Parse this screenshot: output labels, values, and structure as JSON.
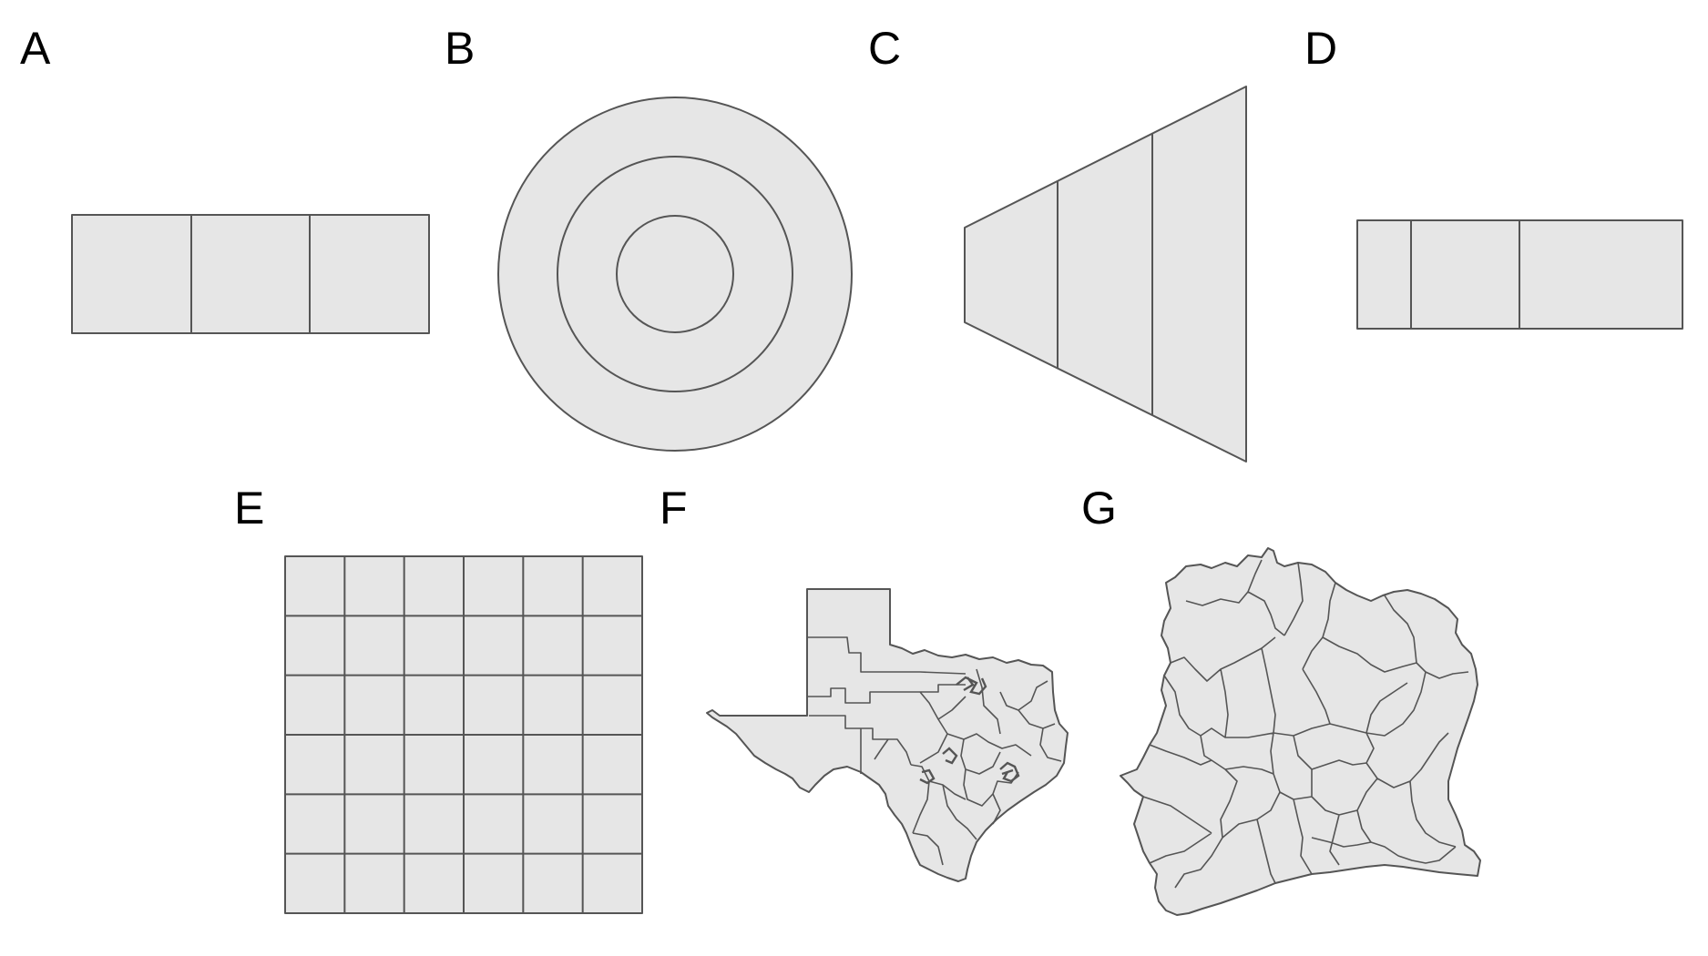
{
  "panels": {
    "A": {
      "label": "A",
      "shape": "rectangle-3-columns"
    },
    "B": {
      "label": "B",
      "shape": "concentric-circles-3-rings"
    },
    "C": {
      "label": "C",
      "shape": "trapezoid-3-slices"
    },
    "D": {
      "label": "D",
      "shape": "rectangle-3-unequal-columns"
    },
    "E": {
      "label": "E",
      "shape": "grid-6x6"
    },
    "F": {
      "label": "F",
      "shape": "texas-districts-map"
    },
    "G": {
      "label": "G",
      "shape": "cote-divoire-regions-map"
    }
  },
  "colors": {
    "fill": "#e6e6e6",
    "stroke": "#555555",
    "label": "#000000",
    "background": "#ffffff"
  }
}
